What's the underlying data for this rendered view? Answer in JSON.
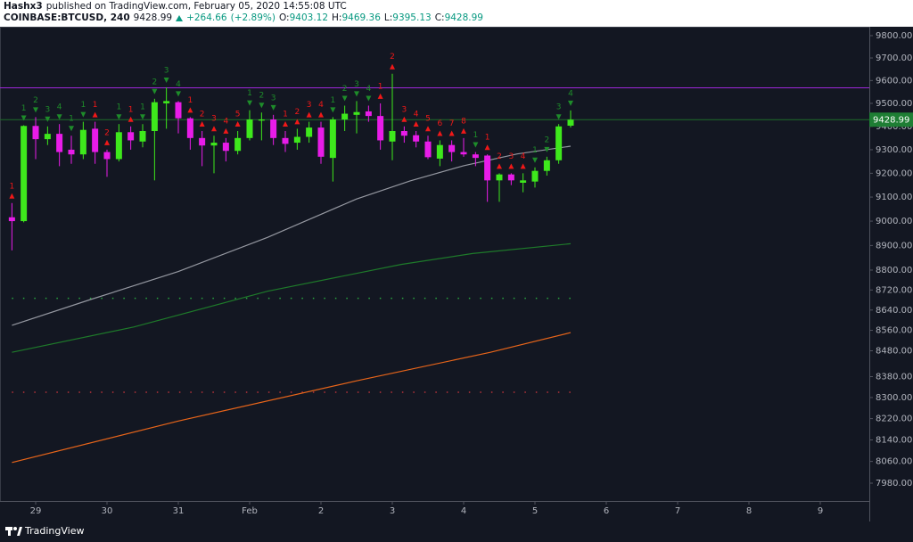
{
  "header": {
    "author": "Hashx3",
    "published": "published on TradingView.com, February 05, 2020 14:55:08 UTC",
    "symbol": "COINBASE:BTCUSD, 240",
    "last": 9428.99,
    "change": {
      "value": 264.66,
      "label": "+264.66"
    },
    "change_pct": {
      "value": 2.89,
      "label": "(+2.89%)"
    },
    "fields": [
      {
        "label": "O:",
        "value": 9403.12
      },
      {
        "label": "H:",
        "value": 9469.36
      },
      {
        "label": "L:",
        "value": 9395.13
      },
      {
        "label": "C:",
        "value": 9428.99
      }
    ]
  },
  "chart_data": {
    "type": "candlestick",
    "log": true,
    "ylim": [
      7915,
      9840
    ],
    "yticks": [
      {
        "value": 9800,
        "label": "9800.00"
      },
      {
        "value": 9700,
        "label": "9700.00"
      },
      {
        "value": 9600,
        "label": "9600.00"
      },
      {
        "value": 9500,
        "label": "9500.00"
      },
      {
        "value": 9400,
        "label": "9400.00"
      },
      {
        "value": 9300,
        "label": "9300.00"
      },
      {
        "value": 9200,
        "label": "9200.00"
      },
      {
        "value": 9100,
        "label": "9100.00"
      },
      {
        "value": 9000,
        "label": "9000.00"
      },
      {
        "value": 8900,
        "label": "8900.00"
      },
      {
        "value": 8800,
        "label": "8800.00"
      },
      {
        "value": 8720,
        "label": "8720.00"
      },
      {
        "value": 8640,
        "label": "8640.00"
      },
      {
        "value": 8560,
        "label": "8560.00"
      },
      {
        "value": 8480,
        "label": "8480.00"
      },
      {
        "value": 8380,
        "label": "8380.00"
      },
      {
        "value": 8300,
        "label": "8300.00"
      },
      {
        "value": 8220,
        "label": "8220.00"
      },
      {
        "value": 8140,
        "label": "8140.00"
      },
      {
        "value": 8060,
        "label": "8060.00"
      },
      {
        "value": 7980,
        "label": "7980.00"
      }
    ],
    "xlim": [
      -0.5,
      11.6875
    ],
    "xticks": [
      {
        "value": 0,
        "label": "29"
      },
      {
        "value": 1,
        "label": "30"
      },
      {
        "value": 2,
        "label": "31"
      },
      {
        "value": 3,
        "label": "Feb"
      },
      {
        "value": 4,
        "label": "2"
      },
      {
        "value": 5,
        "label": "3"
      },
      {
        "value": 6,
        "label": "4"
      },
      {
        "value": 7,
        "label": "5"
      },
      {
        "value": 8,
        "label": "6"
      },
      {
        "value": 9,
        "label": "7"
      },
      {
        "value": 10,
        "label": "8"
      },
      {
        "value": 11,
        "label": "9"
      }
    ],
    "up_color": "#3ee81c",
    "down_color": "#e81ce8",
    "x": [
      -0.333,
      -0.167,
      0,
      0.167,
      0.333,
      0.5,
      0.667,
      0.833,
      1,
      1.167,
      1.333,
      1.5,
      1.667,
      1.833,
      2,
      2.167,
      2.333,
      2.5,
      2.667,
      2.833,
      3,
      3.167,
      3.333,
      3.5,
      3.667,
      3.833,
      4,
      4.167,
      4.333,
      4.5,
      4.667,
      4.833,
      5,
      5.167,
      5.333,
      5.5,
      5.667,
      5.833,
      6,
      6.167,
      6.333,
      6.5,
      6.667,
      6.833,
      7,
      7.167,
      7.333,
      7.5
    ],
    "open": [
      9016,
      9000,
      9402,
      9345,
      9368,
      9300,
      9280,
      9390,
      9290,
      9260,
      9375,
      9335,
      9380,
      9500,
      9505,
      9435,
      9350,
      9318,
      9330,
      9295,
      9350,
      9425,
      9430,
      9350,
      9330,
      9355,
      9395,
      9265,
      9430,
      9450,
      9465,
      9445,
      9335,
      9380,
      9362,
      9335,
      9262,
      9320,
      9290,
      9280,
      9275,
      9170,
      9195,
      9160,
      9165,
      9210,
      9255,
      9403.12
    ],
    "high": [
      9075,
      9405,
      9440,
      9400,
      9410,
      9360,
      9420,
      9420,
      9300,
      9410,
      9400,
      9410,
      9520,
      9570,
      9510,
      9440,
      9380,
      9360,
      9350,
      9380,
      9470,
      9460,
      9450,
      9380,
      9390,
      9420,
      9420,
      9440,
      9490,
      9510,
      9490,
      9500,
      9630,
      9400,
      9380,
      9360,
      9340,
      9340,
      9350,
      9290,
      9280,
      9200,
      9200,
      9200,
      9225,
      9270,
      9410,
      9469.36
    ],
    "low": [
      8880,
      8995,
      9260,
      9320,
      9230,
      9240,
      9260,
      9240,
      9185,
      9250,
      9300,
      9310,
      9170,
      9390,
      9370,
      9300,
      9230,
      9200,
      9250,
      9280,
      9340,
      9340,
      9320,
      9290,
      9300,
      9330,
      9240,
      9165,
      9380,
      9370,
      9420,
      9300,
      9255,
      9330,
      9310,
      9260,
      9230,
      9250,
      9270,
      9230,
      9080,
      9080,
      9150,
      9120,
      9140,
      9190,
      9240,
      9395.13
    ],
    "close": [
      9000,
      9402,
      9345,
      9368,
      9290,
      9280,
      9385,
      9290,
      9260,
      9375,
      9340,
      9380,
      9505,
      9510,
      9435,
      9350,
      9318,
      9330,
      9295,
      9350,
      9430,
      9430,
      9350,
      9325,
      9355,
      9395,
      9270,
      9430,
      9455,
      9462,
      9445,
      9340,
      9380,
      9360,
      9335,
      9268,
      9320,
      9290,
      9280,
      9265,
      9170,
      9195,
      9170,
      9170,
      9210,
      9255,
      9400,
      9428.99
    ],
    "td": [
      {
        "count": 1,
        "color": "#f01818"
      },
      {
        "count": 1,
        "color": "#1e8c2a"
      },
      {
        "count": 2,
        "color": "#1e8c2a"
      },
      {
        "count": 3,
        "color": "#1e8c2a"
      },
      {
        "count": 4,
        "color": "#1e8c2a"
      },
      {
        "count": 1,
        "color": "#1e8c2a"
      },
      {
        "count": 1,
        "color": "#1e8c2a"
      },
      {
        "count": 1,
        "color": "#f01818"
      },
      {
        "count": 2,
        "color": "#f01818"
      },
      {
        "count": 1,
        "color": "#1e8c2a"
      },
      {
        "count": 1,
        "color": "#f01818"
      },
      {
        "count": 1,
        "color": "#1e8c2a"
      },
      {
        "count": 2,
        "color": "#1e8c2a"
      },
      {
        "count": 3,
        "color": "#1e8c2a"
      },
      {
        "count": 4,
        "color": "#1e8c2a"
      },
      {
        "count": 1,
        "color": "#f01818"
      },
      {
        "count": 2,
        "color": "#f01818"
      },
      {
        "count": 3,
        "color": "#f01818"
      },
      {
        "count": 4,
        "color": "#f01818"
      },
      {
        "count": 5,
        "color": "#f01818"
      },
      {
        "count": 1,
        "color": "#1e8c2a"
      },
      {
        "count": 2,
        "color": "#1e8c2a"
      },
      {
        "count": 3,
        "color": "#1e8c2a"
      },
      {
        "count": 1,
        "color": "#f01818"
      },
      {
        "count": 2,
        "color": "#f01818"
      },
      {
        "count": 3,
        "color": "#f01818"
      },
      {
        "count": 4,
        "color": "#f01818"
      },
      {
        "count": 1,
        "color": "#1e8c2a"
      },
      {
        "count": 2,
        "color": "#1e8c2a"
      },
      {
        "count": 3,
        "color": "#1e8c2a"
      },
      {
        "count": 4,
        "color": "#1e8c2a"
      },
      {
        "count": 1,
        "color": "#f01818"
      },
      {
        "count": 2,
        "color": "#f01818"
      },
      {
        "count": 3,
        "color": "#f01818"
      },
      {
        "count": 4,
        "color": "#f01818"
      },
      {
        "count": 5,
        "color": "#f01818"
      },
      {
        "count": 6,
        "color": "#f01818"
      },
      {
        "count": 7,
        "color": "#f01818"
      },
      {
        "count": 8,
        "color": "#f01818"
      },
      {
        "count": 1,
        "color": "#1e8c2a"
      },
      {
        "count": 1,
        "color": "#f01818"
      },
      {
        "count": 2,
        "color": "#f01818"
      },
      {
        "count": 3,
        "color": "#f01818"
      },
      {
        "count": 4,
        "color": "#f01818"
      },
      {
        "count": 1,
        "color": "#1e8c2a"
      },
      {
        "count": 2,
        "color": "#1e8c2a"
      },
      {
        "count": 3,
        "color": "#1e8c2a"
      },
      {
        "count": 4,
        "color": "#1e8c2a"
      }
    ],
    "lines": [
      {
        "color": "#9598a1",
        "x": [
          -0.333,
          0.75,
          2,
          3.25,
          4.5,
          5.25,
          6,
          6.75,
          7.5
        ],
        "values": [
          8580,
          8680,
          8794,
          8933,
          9092,
          9168,
          9232,
          9282,
          9315
        ]
      },
      {
        "color": "#1e7a2a",
        "x": [
          -0.333,
          1.375,
          3.25,
          5.125,
          6.125,
          7.5
        ],
        "values": [
          8474,
          8573,
          8715,
          8823,
          8867,
          8907
        ]
      },
      {
        "color": "#e8651a",
        "x": [
          -0.333,
          2,
          4.5,
          6.375,
          7.5
        ],
        "values": [
          8056,
          8211,
          8364,
          8474,
          8551
        ]
      }
    ],
    "levels": [
      {
        "value": 9568,
        "color": "#9c27d8",
        "style": "solid",
        "extend": "full"
      },
      {
        "value": 9428.99,
        "color": "#1e6e2a",
        "style": "solid",
        "extend": "full"
      },
      {
        "value": 8687,
        "color": "#2aa640",
        "style": "dotted",
        "extend": "candles"
      },
      {
        "value": 8320,
        "color": "#b8323a",
        "style": "dotted",
        "extend": "candles"
      }
    ],
    "price_tag_color": "#1e7e34",
    "brand": "TradingView"
  }
}
